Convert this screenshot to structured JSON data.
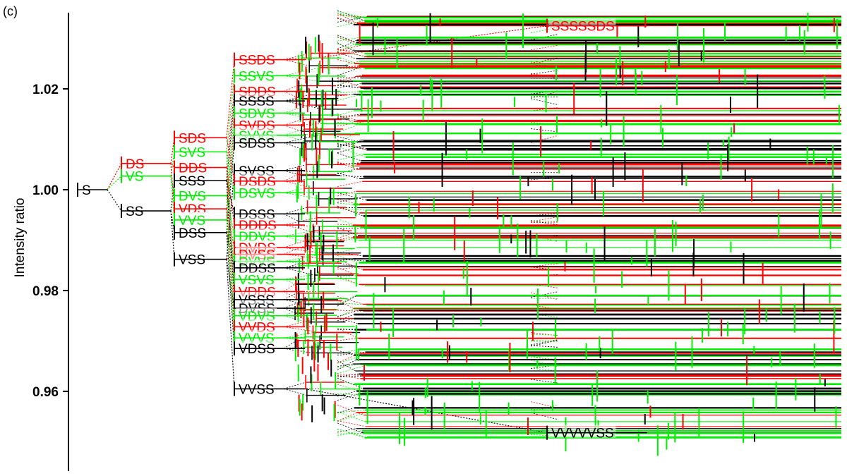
{
  "panel_label": "(c)",
  "colors": {
    "red": "#ff0000",
    "green": "#00ee00",
    "black": "#000000"
  },
  "chart_data": {
    "type": "tree",
    "ylabel": "Intensity ratio",
    "ylim": [
      0.947,
      1.034
    ],
    "yticks": [
      1.02,
      1.0,
      0.98,
      0.96
    ],
    "ytick_labels": [
      "1.02",
      "1.00",
      "0.98",
      "0.96"
    ],
    "levels": 8,
    "nodes": [
      {
        "label": "S",
        "level": 1,
        "y": 1.0,
        "color": "black"
      },
      {
        "label": "DS",
        "level": 2,
        "y": 1.0052,
        "color": "red",
        "parent": "S"
      },
      {
        "label": "VS",
        "level": 2,
        "y": 1.0027,
        "color": "green",
        "parent": "S"
      },
      {
        "label": "SS",
        "level": 2,
        "y": 0.9958,
        "color": "black",
        "parent": "S"
      },
      {
        "label": "SDS",
        "level": 3,
        "y": 1.0103,
        "color": "red",
        "parent": "DS"
      },
      {
        "label": "SVS",
        "level": 3,
        "y": 1.0075,
        "color": "green",
        "parent": "VS"
      },
      {
        "label": "DDS",
        "level": 3,
        "y": 1.0044,
        "color": "red",
        "parent": "DS"
      },
      {
        "label": "SSS",
        "level": 3,
        "y": 1.0018,
        "color": "black",
        "parent": "SS"
      },
      {
        "label": "DVS",
        "level": 3,
        "y": 0.9988,
        "color": "green",
        "parent": "VS"
      },
      {
        "label": "VDS",
        "level": 3,
        "y": 0.9962,
        "color": "red",
        "parent": "DS"
      },
      {
        "label": "VVS",
        "level": 3,
        "y": 0.994,
        "color": "green",
        "parent": "VS"
      },
      {
        "label": "DSS",
        "level": 3,
        "y": 0.9915,
        "color": "black",
        "parent": "SS"
      },
      {
        "label": "VSS",
        "level": 3,
        "y": 0.9862,
        "color": "black",
        "parent": "SS"
      },
      {
        "label": "SSDS",
        "level": 4,
        "y": 1.0258,
        "color": "red",
        "parent": "SDS"
      },
      {
        "label": "SSVS",
        "level": 4,
        "y": 1.0226,
        "color": "green",
        "parent": "SVS"
      },
      {
        "label": "SDDS",
        "level": 4,
        "y": 1.0195,
        "color": "red",
        "parent": "DDS"
      },
      {
        "label": "SSSS",
        "level": 4,
        "y": 1.0176,
        "color": "black",
        "parent": "SSS"
      },
      {
        "label": "SDVS",
        "level": 4,
        "y": 1.0152,
        "color": "green",
        "parent": "DVS"
      },
      {
        "label": "SVDS",
        "level": 4,
        "y": 1.0128,
        "color": "red",
        "parent": "VDS"
      },
      {
        "label": "SVVS",
        "level": 4,
        "y": 1.0108,
        "color": "green",
        "parent": "VVS"
      },
      {
        "label": "SDSS",
        "level": 4,
        "y": 1.0093,
        "color": "black",
        "parent": "DSS"
      },
      {
        "label": "SVSS",
        "level": 4,
        "y": 1.0038,
        "color": "black",
        "parent": "VSS"
      },
      {
        "label": "DSDS",
        "level": 4,
        "y": 1.0017,
        "color": "red",
        "parent": "SDS"
      },
      {
        "label": "DSVS",
        "level": 4,
        "y": 0.9994,
        "color": "green",
        "parent": "SVS"
      },
      {
        "label": "DSSS",
        "level": 4,
        "y": 0.9952,
        "color": "black",
        "parent": "SSS"
      },
      {
        "label": "DDDS",
        "level": 4,
        "y": 0.993,
        "color": "red",
        "parent": "DDS"
      },
      {
        "label": "DDVS",
        "level": 4,
        "y": 0.9908,
        "color": "green",
        "parent": "DVS"
      },
      {
        "label": "DVDS",
        "level": 4,
        "y": 0.9885,
        "color": "red",
        "parent": "VDS"
      },
      {
        "label": "DVSS",
        "level": 4,
        "y": 0.9872,
        "color": "red",
        "parent": "VSS"
      },
      {
        "label": "DVVS",
        "level": 4,
        "y": 0.9858,
        "color": "green",
        "parent": "VVS"
      },
      {
        "label": "DDSS",
        "level": 4,
        "y": 0.9845,
        "color": "black",
        "parent": "DSS"
      },
      {
        "label": "VSVS",
        "level": 4,
        "y": 0.9822,
        "color": "green",
        "parent": "SVS"
      },
      {
        "label": "VDDS",
        "level": 4,
        "y": 0.9798,
        "color": "red",
        "parent": "DDS"
      },
      {
        "label": "VSSS",
        "level": 4,
        "y": 0.9782,
        "color": "black",
        "parent": "SSS"
      },
      {
        "label": "DVSS",
        "level": 4,
        "y": 0.9765,
        "color": "black",
        "parent": "VSS"
      },
      {
        "label": "VDVS",
        "level": 4,
        "y": 0.975,
        "color": "green",
        "parent": "DVS"
      },
      {
        "label": "VVDS",
        "level": 4,
        "y": 0.9728,
        "color": "red",
        "parent": "VDS"
      },
      {
        "label": "VVVS",
        "level": 4,
        "y": 0.9706,
        "color": "green",
        "parent": "VVS"
      },
      {
        "label": "VDSS",
        "level": 4,
        "y": 0.9685,
        "color": "black",
        "parent": "DSS"
      },
      {
        "label": "VVSS",
        "level": 4,
        "y": 0.9605,
        "color": "black",
        "parent": "VSS"
      },
      {
        "label": "SSSSSDS",
        "level": 8,
        "y": 1.0325,
        "color": "red",
        "parent": "SSDS"
      },
      {
        "label": "VVVVVSS",
        "level": 8,
        "y": 0.9518,
        "color": "black",
        "parent": "VVSS"
      }
    ]
  }
}
